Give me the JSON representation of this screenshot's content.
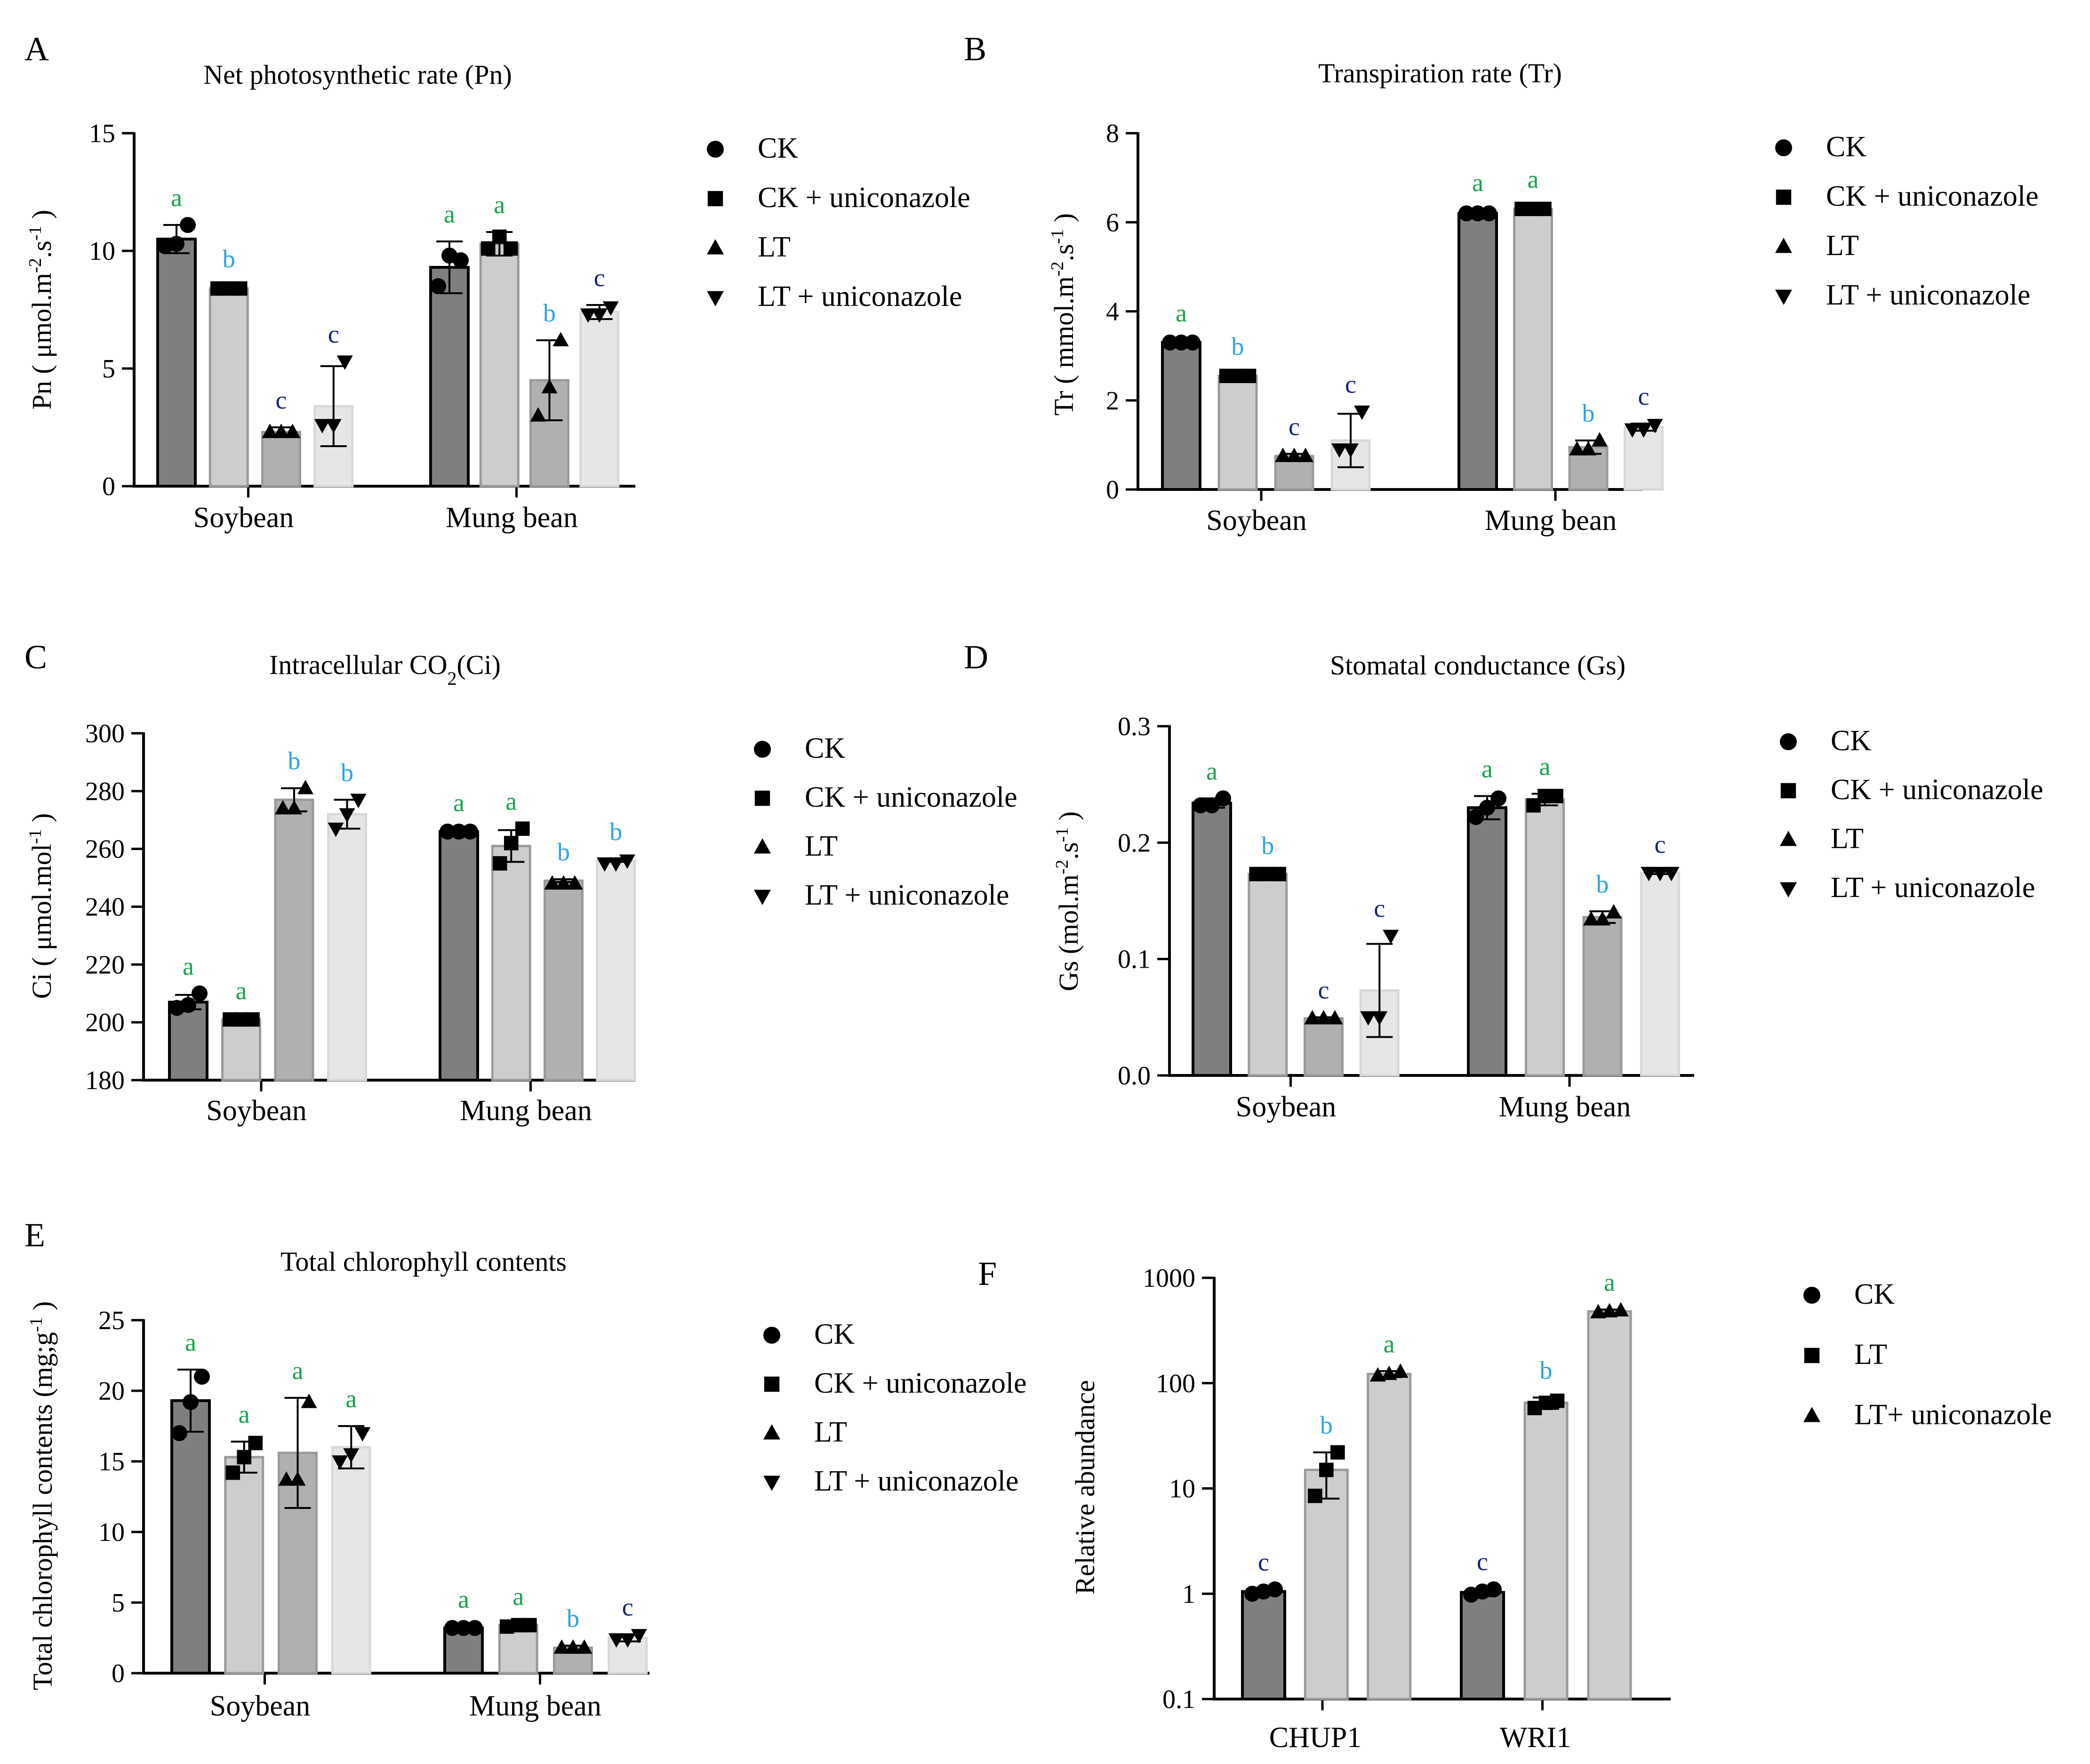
{
  "colors": {
    "bars": [
      "#7f7f7f",
      "#cdcdcd",
      "#b0b0b0",
      "#e6e6e6"
    ],
    "bars3": [
      "#7f7f7f",
      "#cdcdcd",
      "#cdcdcd"
    ],
    "sig_a": "#1aa34a",
    "sig_b": "#2aa3e8",
    "sig_c": "#10237a"
  },
  "chart_data": [
    {
      "id": "A",
      "panel_label": "A",
      "type": "bar",
      "title": "Net photosynthetic rate (Pn)",
      "ylabel": "Pn ( μmol.m-2.s-1 )",
      "ylabel_parts": {
        "pre": "Pn ( μmol.m",
        "sup1": "-2",
        "mid": ".s",
        "sup2": "-1",
        "post": " )"
      },
      "yscale": "linear",
      "ylim": [
        0,
        15
      ],
      "yticks": [
        0,
        5,
        10,
        15
      ],
      "ytick_labels": [
        "0",
        "5",
        "10",
        "15"
      ],
      "categories": [
        "Soybean",
        "Mung bean"
      ],
      "legend": [
        {
          "marker": "circle",
          "label": "CK"
        },
        {
          "marker": "square",
          "label": "CK + uniconazole"
        },
        {
          "marker": "triangle",
          "label": "LT"
        },
        {
          "marker": "triangle-down",
          "label": "LT + uniconazole"
        }
      ],
      "series": [
        {
          "name": "CK",
          "values": [
            10.5,
            9.3
          ],
          "errors": [
            0.6,
            1.1
          ],
          "points": [
            [
              10.2,
              10.3,
              11.1
            ],
            [
              8.5,
              9.8,
              9.6
            ]
          ],
          "letters": [
            "a",
            "a"
          ]
        },
        {
          "name": "CK + uniconazole",
          "values": [
            8.4,
            10.3
          ],
          "errors": [
            0.1,
            0.5
          ],
          "points": [
            [
              8.4,
              8.4,
              8.4
            ],
            [
              10.1,
              10.6,
              10.1
            ]
          ],
          "letters": [
            "b",
            "a"
          ]
        },
        {
          "name": "LT",
          "values": [
            2.3,
            4.5
          ],
          "errors": [
            0.2,
            1.7
          ],
          "points": [
            [
              2.3,
              2.3,
              2.3
            ],
            [
              3.0,
              4.2,
              6.2
            ]
          ],
          "letters": [
            "c",
            "b"
          ]
        },
        {
          "name": "LT + uniconazole",
          "values": [
            3.4,
            7.4
          ],
          "errors": [
            1.7,
            0.3
          ],
          "points": [
            [
              2.6,
              2.6,
              5.3
            ],
            [
              7.3,
              7.3,
              7.6
            ]
          ],
          "letters": [
            "c",
            "c"
          ]
        }
      ]
    },
    {
      "id": "B",
      "panel_label": "B",
      "type": "bar",
      "title": "Transpiration rate (Tr)",
      "ylabel": "Tr ( mmol.m-2.s-1 )",
      "ylabel_parts": {
        "pre": "Tr ( mmol.m",
        "sup1": "-2",
        "mid": ".s",
        "sup2": "-1",
        "post": " )"
      },
      "yscale": "linear",
      "ylim": [
        0,
        8
      ],
      "yticks": [
        0,
        2,
        4,
        6,
        8
      ],
      "ytick_labels": [
        "0",
        "2",
        "4",
        "6",
        "8"
      ],
      "categories": [
        "Soybean",
        "Mung bean"
      ],
      "legend": [
        {
          "marker": "circle",
          "label": "CK"
        },
        {
          "marker": "square",
          "label": "CK + uniconazole"
        },
        {
          "marker": "triangle",
          "label": "LT"
        },
        {
          "marker": "triangle-down",
          "label": "LT + uniconazole"
        }
      ],
      "series": [
        {
          "name": "CK",
          "values": [
            3.3,
            6.2
          ],
          "errors": [
            0.05,
            0.08
          ],
          "points": [
            [
              3.3,
              3.3,
              3.3
            ],
            [
              6.2,
              6.2,
              6.2
            ]
          ],
          "letters": [
            "a",
            "a"
          ]
        },
        {
          "name": "CK + uniconazole",
          "values": [
            2.55,
            6.3
          ],
          "errors": [
            0.05,
            0.05
          ],
          "points": [
            [
              2.55,
              2.55,
              2.55
            ],
            [
              6.3,
              6.3,
              6.3
            ]
          ],
          "letters": [
            "b",
            "a"
          ]
        },
        {
          "name": "LT",
          "values": [
            0.75,
            0.95
          ],
          "errors": [
            0.05,
            0.15
          ],
          "points": [
            [
              0.75,
              0.75,
              0.75
            ],
            [
              0.9,
              0.9,
              1.1
            ]
          ],
          "letters": [
            "c",
            "b"
          ]
        },
        {
          "name": "LT + uniconazole",
          "values": [
            1.1,
            1.4
          ],
          "errors": [
            0.6,
            0.08
          ],
          "points": [
            [
              0.9,
              0.9,
              1.75
            ],
            [
              1.35,
              1.35,
              1.45
            ]
          ],
          "letters": [
            "c",
            "c"
          ]
        }
      ]
    },
    {
      "id": "C",
      "panel_label": "C",
      "type": "bar",
      "title": "Intracellular CO2(Ci)",
      "title_parts": {
        "pre": "Intracellular CO",
        "sub": "2",
        "post": "(Ci)"
      },
      "ylabel": "Ci ( μmol.mol-1 )",
      "ylabel_parts": {
        "pre": "Ci ( μmol.mol",
        "sup1": "-1",
        "mid": "",
        "sup2": "",
        "post": " )"
      },
      "yscale": "linear",
      "ylim": [
        180,
        300
      ],
      "yticks": [
        180,
        200,
        220,
        240,
        260,
        280,
        300
      ],
      "ytick_labels": [
        "180",
        "200",
        "220",
        "240",
        "260",
        "280",
        "300"
      ],
      "categories": [
        "Soybean",
        "Mung bean"
      ],
      "legend": [
        {
          "marker": "circle",
          "label": "CK"
        },
        {
          "marker": "square",
          "label": "CK + uniconazole"
        },
        {
          "marker": "triangle",
          "label": "LT"
        },
        {
          "marker": "triangle-down",
          "label": "LT + uniconazole"
        }
      ],
      "series": [
        {
          "name": "CK",
          "values": [
            207,
            266
          ],
          "errors": [
            2.5,
            0.5
          ],
          "points": [
            [
              205,
              206,
              210
            ],
            [
              266,
              266,
              266
            ]
          ],
          "letters": [
            "a",
            "a"
          ]
        },
        {
          "name": "CK + uniconazole",
          "values": [
            201,
            261
          ],
          "errors": [
            0.5,
            5.5
          ],
          "points": [
            [
              201,
              201,
              201
            ],
            [
              255,
              262,
              267
            ]
          ],
          "letters": [
            "a",
            "a"
          ]
        },
        {
          "name": "LT",
          "values": [
            277,
            249
          ],
          "errors": [
            4,
            0.5
          ],
          "points": [
            [
              274,
              274,
              281
            ],
            [
              248,
              248,
              248
            ]
          ],
          "letters": [
            "b",
            "b"
          ]
        },
        {
          "name": "LT + uniconazole",
          "values": [
            272,
            256
          ],
          "errors": [
            5,
            0.5
          ],
          "points": [
            [
              267,
              272,
              277
            ],
            [
              255,
              255,
              256
            ]
          ],
          "letters": [
            "b",
            "b"
          ]
        }
      ]
    },
    {
      "id": "D",
      "panel_label": "D",
      "type": "bar",
      "title": "Stomatal conductance (Gs)",
      "ylabel": "Gs (mol.m-2.s-1 )",
      "ylabel_parts": {
        "pre": "Gs (mol.m",
        "sup1": "-2",
        "mid": ".s",
        "sup2": "-1",
        "post": " )"
      },
      "yscale": "linear",
      "ylim": [
        0,
        0.3
      ],
      "yticks": [
        0,
        0.1,
        0.2,
        0.3
      ],
      "ytick_labels": [
        "0.0",
        "0.1",
        "0.2",
        "0.3"
      ],
      "categories": [
        "Soybean",
        "Mung bean"
      ],
      "legend": [
        {
          "marker": "circle",
          "label": "CK"
        },
        {
          "marker": "square",
          "label": "CK + uniconazole"
        },
        {
          "marker": "triangle",
          "label": "LT"
        },
        {
          "marker": "triangle-down",
          "label": "LT + uniconazole"
        }
      ],
      "series": [
        {
          "name": "CK",
          "values": [
            0.234,
            0.23
          ],
          "errors": [
            0.004,
            0.01
          ],
          "points": [
            [
              0.232,
              0.232,
              0.238
            ],
            [
              0.222,
              0.23,
              0.238
            ]
          ],
          "letters": [
            "a",
            "a"
          ]
        },
        {
          "name": "CK + uniconazole",
          "values": [
            0.173,
            0.237
          ],
          "errors": [
            0.001,
            0.005
          ],
          "points": [
            [
              0.173,
              0.173,
              0.173
            ],
            [
              0.232,
              0.24,
              0.24
            ]
          ],
          "letters": [
            "b",
            "a"
          ]
        },
        {
          "name": "LT",
          "values": [
            0.049,
            0.136
          ],
          "errors": [
            0.001,
            0.005
          ],
          "points": [
            [
              0.049,
              0.049,
              0.049
            ],
            [
              0.134,
              0.134,
              0.14
            ]
          ],
          "letters": [
            "c",
            "b"
          ]
        },
        {
          "name": "LT + uniconazole",
          "values": [
            0.073,
            0.174
          ],
          "errors": [
            0.04,
            0.001
          ],
          "points": [
            [
              0.05,
              0.05,
              0.12
            ],
            [
              0.174,
              0.174,
              0.174
            ]
          ],
          "letters": [
            "c",
            "c"
          ]
        }
      ]
    },
    {
      "id": "E",
      "panel_label": "E",
      "type": "bar",
      "title": "Total chlorophyll contents",
      "ylabel": "Total chlorophyll contents (mg;g-1 )",
      "ylabel_parts": {
        "pre": "Total chlorophyll contents (mg;g",
        "sup1": "-1",
        "mid": "",
        "sup2": "",
        "post": " )"
      },
      "yscale": "linear",
      "ylim": [
        0,
        25
      ],
      "yticks": [
        0,
        5,
        10,
        15,
        20,
        25
      ],
      "ytick_labels": [
        "0",
        "5",
        "10",
        "15",
        "20",
        "25"
      ],
      "categories": [
        "Soybean",
        "Mung bean"
      ],
      "legend": [
        {
          "marker": "circle",
          "label": "CK"
        },
        {
          "marker": "square",
          "label": "CK + uniconazole"
        },
        {
          "marker": "triangle",
          "label": "LT"
        },
        {
          "marker": "triangle-down",
          "label": "LT + uniconazole"
        }
      ],
      "series": [
        {
          "name": "CK",
          "values": [
            19.3,
            3.2
          ],
          "errors": [
            2.2,
            0.1
          ],
          "points": [
            [
              17.0,
              19.2,
              21.0
            ],
            [
              3.2,
              3.2,
              3.2
            ]
          ],
          "letters": [
            "a",
            "a"
          ]
        },
        {
          "name": "CK + uniconazole",
          "values": [
            15.3,
            3.4
          ],
          "errors": [
            1.1,
            0.1
          ],
          "points": [
            [
              14.2,
              15.3,
              16.3
            ],
            [
              3.3,
              3.4,
              3.4
            ]
          ],
          "letters": [
            "a",
            "a"
          ]
        },
        {
          "name": "LT",
          "values": [
            15.6,
            1.8
          ],
          "errors": [
            3.9,
            0.15
          ],
          "points": [
            [
              13.7,
              13.7,
              19.2
            ],
            [
              1.8,
              1.8,
              1.8
            ]
          ],
          "letters": [
            "a",
            "b"
          ]
        },
        {
          "name": "LT + uniconazole",
          "values": [
            16.0,
            2.5
          ],
          "errors": [
            1.5,
            0.25
          ],
          "points": [
            [
              15.0,
              15.5,
              17.0
            ],
            [
              2.4,
              2.4,
              2.7
            ]
          ],
          "letters": [
            "a",
            "c"
          ]
        }
      ]
    },
    {
      "id": "F",
      "panel_label": "F",
      "type": "bar",
      "title": "",
      "ylabel": "Relative abundance",
      "yscale": "log",
      "ylim": [
        0.1,
        1000
      ],
      "yticks": [
        0.1,
        1,
        10,
        100,
        1000
      ],
      "ytick_labels": [
        "0.1",
        "1",
        "10",
        "100",
        "1000"
      ],
      "categories": [
        "CHUP1",
        "WRI1"
      ],
      "legend": [
        {
          "marker": "circle",
          "label": "CK"
        },
        {
          "marker": "square",
          "label": "LT"
        },
        {
          "marker": "triangle",
          "label": "LT+ uniconazole"
        }
      ],
      "series": [
        {
          "name": "CK",
          "values": [
            1.05,
            1.03
          ],
          "errors": [
            0.05,
            0.08
          ],
          "points": [
            [
              1.0,
              1.05,
              1.1
            ],
            [
              0.98,
              1.05,
              1.1
            ]
          ],
          "letters": [
            "c",
            "c"
          ]
        },
        {
          "name": "LT",
          "values": [
            15,
            65
          ],
          "errors": [
            7,
            8
          ],
          "points": [
            [
              8.5,
              15,
              22
            ],
            [
              58,
              65,
              68
            ]
          ],
          "letters": [
            "b",
            "b"
          ]
        },
        {
          "name": "LT+ uniconazole",
          "values": [
            122,
            480
          ],
          "errors": [
            8,
            20
          ],
          "points": [
            [
              118,
              122,
              128
            ],
            [
              470,
              480,
              490
            ]
          ],
          "letters": [
            "a",
            "a"
          ]
        }
      ]
    }
  ]
}
